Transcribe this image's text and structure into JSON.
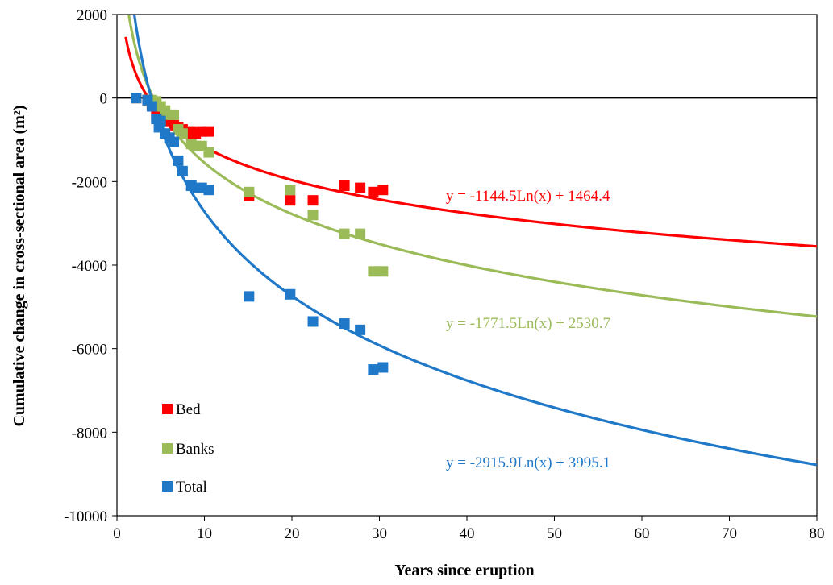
{
  "chart_data": {
    "type": "scatter",
    "xlabel": "Years since eruption",
    "ylabel": "Cumulative change in cross-sectional area (m²)",
    "xlim": [
      0,
      80
    ],
    "ylim": [
      -10000,
      2000
    ],
    "xticks": [
      0,
      10,
      20,
      30,
      40,
      50,
      60,
      70,
      80
    ],
    "yticks": [
      2000,
      0,
      -2000,
      -4000,
      -6000,
      -8000,
      -10000
    ],
    "grid": false,
    "legend_position": "bottom-left",
    "series": [
      {
        "name": "Bed",
        "color": "#ff0000",
        "marker": "square",
        "points": [
          [
            2.2,
            0
          ],
          [
            3.5,
            -50
          ],
          [
            4.0,
            -150
          ],
          [
            4.5,
            -400
          ],
          [
            5.0,
            -480
          ],
          [
            5.5,
            -500
          ],
          [
            6.0,
            -550
          ],
          [
            6.5,
            -650
          ],
          [
            7.0,
            -700
          ],
          [
            7.5,
            -750
          ],
          [
            8.5,
            -800
          ],
          [
            9.0,
            -850
          ],
          [
            9.7,
            -800
          ],
          [
            10.5,
            -800
          ],
          [
            15.1,
            -2350
          ],
          [
            19.8,
            -2450
          ],
          [
            22.4,
            -2450
          ],
          [
            26.0,
            -2100
          ],
          [
            27.8,
            -2150
          ],
          [
            29.3,
            -2250
          ],
          [
            30.4,
            -2200
          ]
        ],
        "trendline": {
          "type": "log",
          "a": -1144.5,
          "b": 1464.4,
          "label": "y = -1144.5Ln(x) + 1464.4"
        }
      },
      {
        "name": "Banks",
        "color": "#9bbb59",
        "marker": "square",
        "points": [
          [
            2.2,
            0
          ],
          [
            3.5,
            -50
          ],
          [
            4.0,
            -50
          ],
          [
            4.5,
            -80
          ],
          [
            5.0,
            -200
          ],
          [
            5.5,
            -300
          ],
          [
            6.0,
            -400
          ],
          [
            6.5,
            -400
          ],
          [
            7.0,
            -750
          ],
          [
            7.5,
            -850
          ],
          [
            8.5,
            -1100
          ],
          [
            9.0,
            -1150
          ],
          [
            9.7,
            -1150
          ],
          [
            10.5,
            -1300
          ],
          [
            15.1,
            -2250
          ],
          [
            19.8,
            -2200
          ],
          [
            22.4,
            -2800
          ],
          [
            26.0,
            -3250
          ],
          [
            27.8,
            -3250
          ],
          [
            29.3,
            -4150
          ],
          [
            30.4,
            -4150
          ]
        ],
        "trendline": {
          "type": "log",
          "a": -1771.5,
          "b": 2530.7,
          "label": "y = -1771.5Ln(x) + 2530.7"
        }
      },
      {
        "name": "Total",
        "color": "#1f78c8",
        "marker": "square",
        "points": [
          [
            2.2,
            0
          ],
          [
            3.5,
            -50
          ],
          [
            4.0,
            -200
          ],
          [
            4.5,
            -500
          ],
          [
            4.8,
            -700
          ],
          [
            5.0,
            -550
          ],
          [
            5.5,
            -850
          ],
          [
            6.0,
            -950
          ],
          [
            6.5,
            -1050
          ],
          [
            7.0,
            -1500
          ],
          [
            7.5,
            -1750
          ],
          [
            8.5,
            -2100
          ],
          [
            9.0,
            -2150
          ],
          [
            9.7,
            -2150
          ],
          [
            10.5,
            -2200
          ],
          [
            15.1,
            -4750
          ],
          [
            19.8,
            -4700
          ],
          [
            22.4,
            -5350
          ],
          [
            26.0,
            -5400
          ],
          [
            27.8,
            -5550
          ],
          [
            29.3,
            -6500
          ],
          [
            30.4,
            -6450
          ]
        ],
        "trendline": {
          "type": "log",
          "a": -2915.9,
          "b": 3995.1,
          "label": "y = -2915.9Ln(x) + 3995.1"
        }
      }
    ]
  }
}
